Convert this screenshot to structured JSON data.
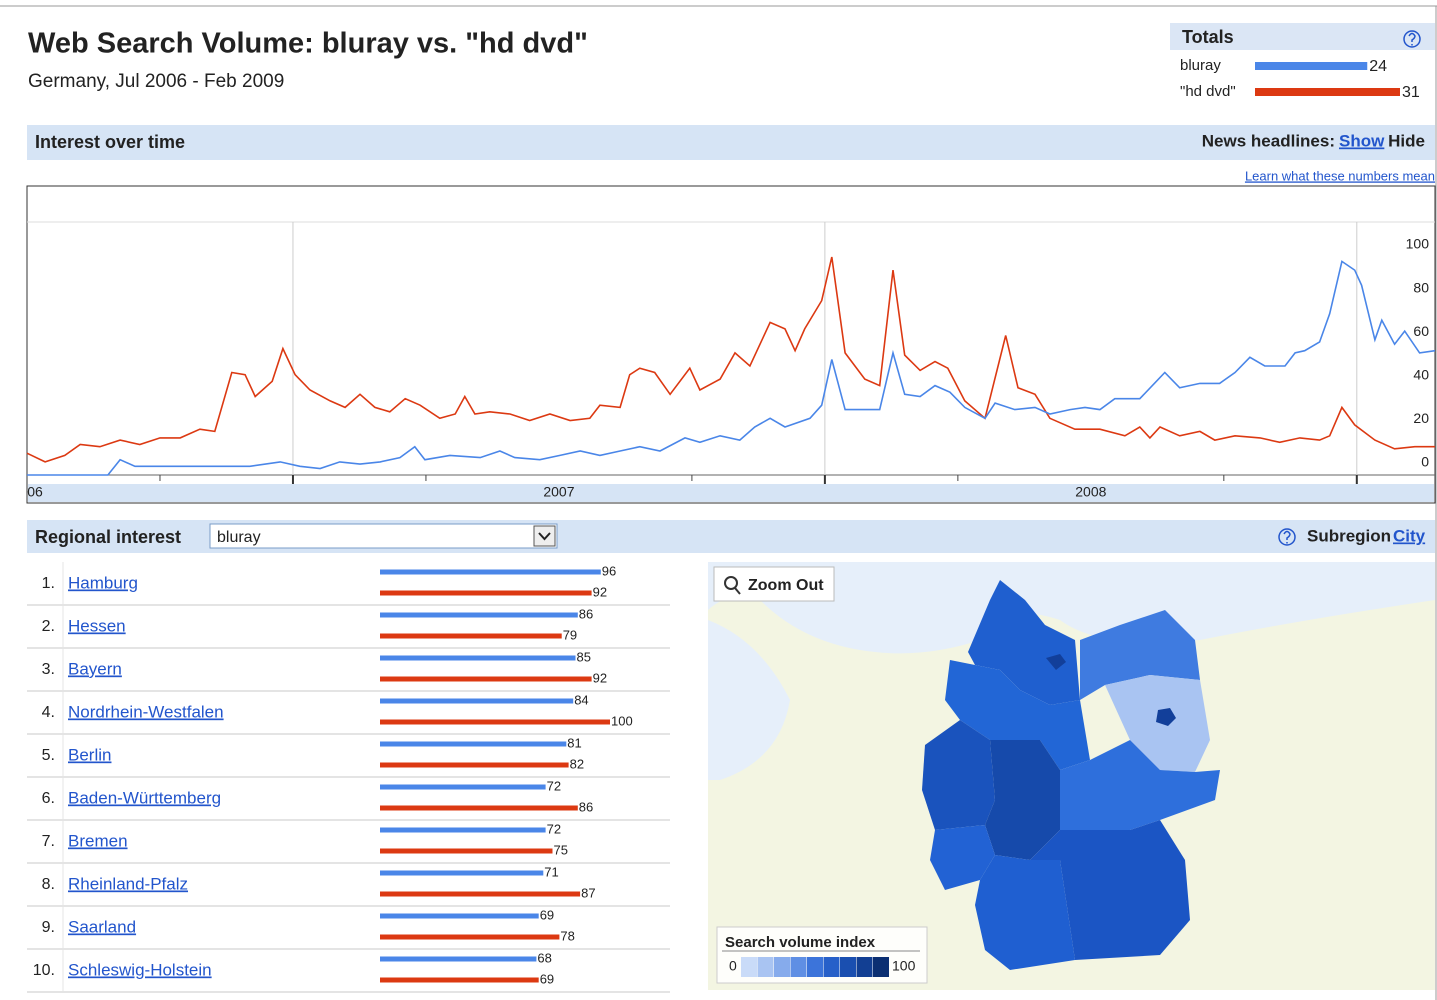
{
  "header": {
    "title": "Web Search Volume: bluray vs. \"hd dvd\"",
    "subtitle": "Germany, Jul 2006 - Feb 2009"
  },
  "interest_bar": {
    "title": "Interest over time",
    "news_label": "News headlines:",
    "show": "Show",
    "hide": "Hide",
    "learn": "Learn what these numbers mean"
  },
  "regional_bar": {
    "title": "Regional interest",
    "dropdown": "bluray",
    "subregion": "Subregion",
    "city": "City"
  },
  "map": {
    "zoom": "Zoom Out",
    "legend_title": "Search volume index",
    "legend_range": [
      0,
      100
    ]
  },
  "chart_data": [
    {
      "type": "bar",
      "orientation": "horizontal",
      "title": "Totals",
      "categories": [
        "bluray",
        "\"hd dvd\""
      ],
      "values": [
        24,
        31
      ],
      "colors": [
        "#4a86e8",
        "#dc3912"
      ],
      "xlim": [
        0,
        31
      ]
    },
    {
      "type": "line",
      "xlim": [
        2006.5,
        2009.147
      ],
      "ylim": [
        0,
        100
      ],
      "yticks": [
        0,
        20,
        40,
        60,
        80,
        100
      ],
      "xticks": [
        2007,
        2008,
        2009
      ],
      "xminor": [
        2006.75,
        2007.25,
        2007.75,
        2008.25,
        2008.75
      ],
      "xlabels": [
        {
          "value": 2006.515,
          "label": "06"
        },
        {
          "value": 2007.5,
          "label": "2007"
        },
        {
          "value": 2008.5,
          "label": "2008"
        }
      ],
      "grid": "x",
      "series": [
        {
          "color": "#dc3912",
          "x": [
            2006.5,
            2006.534,
            2006.571,
            2006.6,
            2006.637,
            2006.675,
            2006.712,
            2006.75,
            2006.788,
            2006.825,
            2006.853,
            2006.885,
            2006.91,
            2006.929,
            2006.961,
            2006.981,
            2007.004,
            2007.032,
            2007.07,
            2007.098,
            2007.126,
            2007.154,
            2007.182,
            2007.211,
            2007.239,
            2007.276,
            2007.305,
            2007.323,
            2007.342,
            2007.37,
            2007.408,
            2007.445,
            2007.483,
            2007.521,
            2007.558,
            2007.577,
            2007.615,
            2007.633,
            2007.652,
            2007.68,
            2007.709,
            2007.746,
            2007.765,
            2007.803,
            2007.831,
            2007.859,
            2007.897,
            2007.925,
            2007.944,
            2007.962,
            2007.994,
            2008.013,
            2008.038,
            2008.075,
            2008.103,
            2008.128,
            2008.15,
            2008.179,
            2008.207,
            2008.231,
            2008.263,
            2008.301,
            2008.34,
            2008.363,
            2008.395,
            2008.423,
            2008.47,
            2008.517,
            2008.564,
            2008.592,
            2008.611,
            2008.63,
            2008.667,
            2008.705,
            2008.733,
            2008.771,
            2008.818,
            2008.855,
            2008.893,
            2008.93,
            2008.949,
            2008.972,
            2008.996,
            2009.034,
            2009.071,
            2009.109,
            2009.147
          ],
          "values": [
            10,
            6,
            9,
            14,
            13,
            16,
            14,
            17,
            17,
            21,
            20,
            47,
            46,
            36,
            43,
            58,
            46,
            39,
            34,
            31,
            37,
            31,
            29,
            35,
            32,
            26,
            28,
            36,
            28,
            29,
            28,
            25,
            28,
            25,
            26,
            32,
            31,
            46,
            49,
            47,
            37,
            49,
            39,
            44,
            56,
            50,
            70,
            67,
            57,
            67,
            80,
            100,
            56,
            44,
            41,
            94,
            55,
            48,
            52,
            49,
            34,
            26,
            64,
            40,
            37,
            26,
            21,
            21,
            18,
            22,
            17,
            22,
            18,
            20,
            16,
            18,
            17,
            15,
            17,
            16,
            18,
            31,
            23,
            16,
            12,
            13,
            13
          ]
        },
        {
          "color": "#4a86e8",
          "x": [
            2006.5,
            2006.562,
            2006.652,
            2006.675,
            2006.703,
            2006.75,
            2006.825,
            2006.853,
            2006.919,
            2006.976,
            2007.013,
            2007.051,
            2007.088,
            2007.126,
            2007.164,
            2007.201,
            2007.229,
            2007.248,
            2007.295,
            2007.352,
            2007.389,
            2007.417,
            2007.464,
            2007.502,
            2007.54,
            2007.577,
            2007.615,
            2007.652,
            2007.69,
            2007.737,
            2007.765,
            2007.803,
            2007.84,
            2007.868,
            2007.897,
            2007.925,
            2007.972,
            2007.994,
            2008.013,
            2008.038,
            2008.075,
            2008.103,
            2008.128,
            2008.15,
            2008.179,
            2008.207,
            2008.235,
            2008.263,
            2008.301,
            2008.32,
            2008.357,
            2008.395,
            2008.423,
            2008.461,
            2008.489,
            2008.517,
            2008.545,
            2008.592,
            2008.639,
            2008.667,
            2008.705,
            2008.742,
            2008.771,
            2008.799,
            2008.827,
            2008.865,
            2008.884,
            2008.902,
            2008.93,
            2008.949,
            2008.972,
            2008.996,
            2009.009,
            2009.034,
            2009.047,
            2009.071,
            2009.09,
            2009.118,
            2009.147
          ],
          "values": [
            0,
            0,
            0,
            7,
            4,
            4,
            4,
            4,
            4,
            6,
            4,
            3,
            6,
            5,
            6,
            8,
            13,
            7,
            9,
            8,
            11,
            8,
            7,
            9,
            11,
            9,
            11,
            13,
            11,
            17,
            15,
            18,
            16,
            22,
            26,
            22,
            26,
            32,
            53,
            30,
            30,
            30,
            56,
            37,
            36,
            41,
            38,
            31,
            26,
            33,
            30,
            31,
            28,
            30,
            31,
            30,
            35,
            35,
            47,
            40,
            42,
            42,
            47,
            54,
            50,
            50,
            56,
            57,
            61,
            74,
            98,
            94,
            87,
            62,
            71,
            60,
            66,
            56,
            57
          ]
        }
      ]
    },
    {
      "type": "bar",
      "orientation": "horizontal",
      "ranks": [
        "1.",
        "2.",
        "3.",
        "4.",
        "5.",
        "6.",
        "7.",
        "8.",
        "9.",
        "10."
      ],
      "categories": [
        "Hamburg",
        "Hessen",
        "Bayern",
        "Nordrhein-Westfalen",
        "Berlin",
        "Baden-Württemberg",
        "Bremen",
        "Rheinland-Pfalz",
        "Saarland",
        "Schleswig-Holstein"
      ],
      "series": [
        {
          "color": "#4a86e8",
          "values": [
            96,
            86,
            85,
            84,
            81,
            72,
            72,
            71,
            69,
            68
          ]
        },
        {
          "color": "#dc3912",
          "values": [
            92,
            79,
            92,
            100,
            82,
            86,
            75,
            87,
            78,
            69
          ]
        }
      ],
      "xlim": [
        0,
        100
      ]
    }
  ]
}
